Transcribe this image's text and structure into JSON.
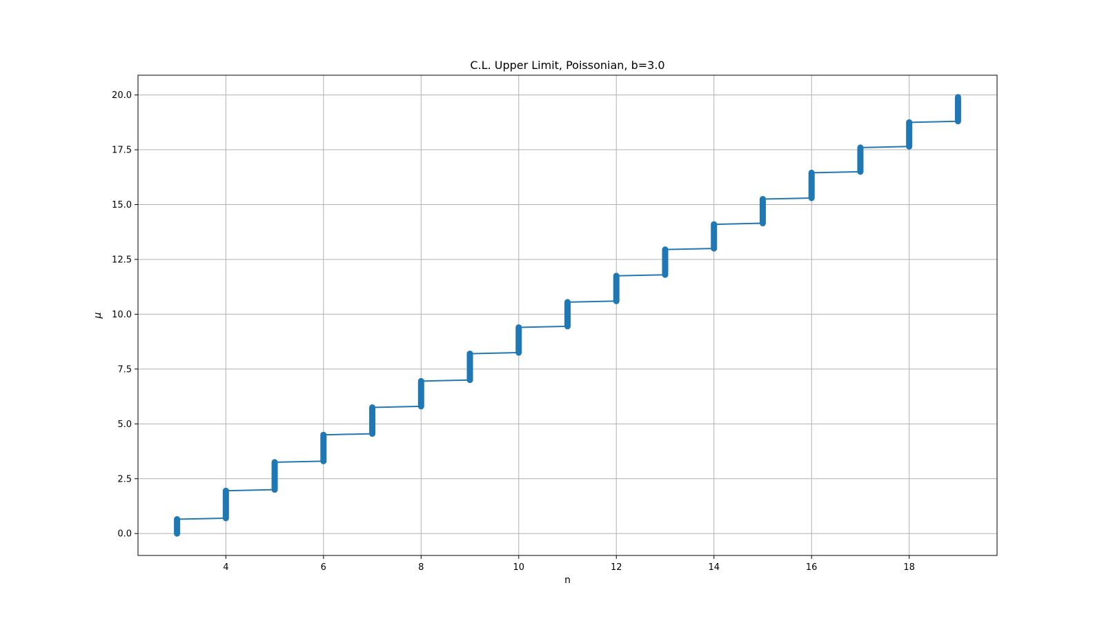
{
  "chart_data": {
    "type": "line",
    "title": "C.L. Upper Limit, Poissonian, b=3.0",
    "xlabel": "n",
    "ylabel": "μ",
    "xlim": [
      2.2,
      19.8
    ],
    "ylim": [
      -1.0,
      20.9
    ],
    "xticks": [
      4,
      6,
      8,
      10,
      12,
      14,
      16,
      18
    ],
    "yticks": [
      0.0,
      2.5,
      5.0,
      7.5,
      10.0,
      12.5,
      15.0,
      17.5,
      20.0
    ],
    "grid": true,
    "color": "#1f77b4",
    "markers": "filled circles stacked into vertical bands at each integer n",
    "series": [
      {
        "n": [
          3,
          4,
          5,
          6,
          7,
          8,
          9,
          10,
          11,
          12,
          13,
          14,
          15,
          16,
          17,
          18,
          19
        ],
        "mu_low": [
          0.0,
          0.7,
          2.0,
          3.3,
          4.55,
          5.8,
          7.0,
          8.25,
          9.45,
          10.6,
          11.8,
          13.0,
          14.15,
          15.3,
          16.5,
          17.65,
          18.8
        ],
        "mu_high": [
          0.65,
          1.95,
          3.25,
          4.5,
          5.75,
          6.95,
          8.2,
          9.4,
          10.55,
          11.75,
          12.95,
          14.1,
          15.25,
          16.45,
          17.6,
          18.75,
          19.9
        ]
      }
    ]
  }
}
